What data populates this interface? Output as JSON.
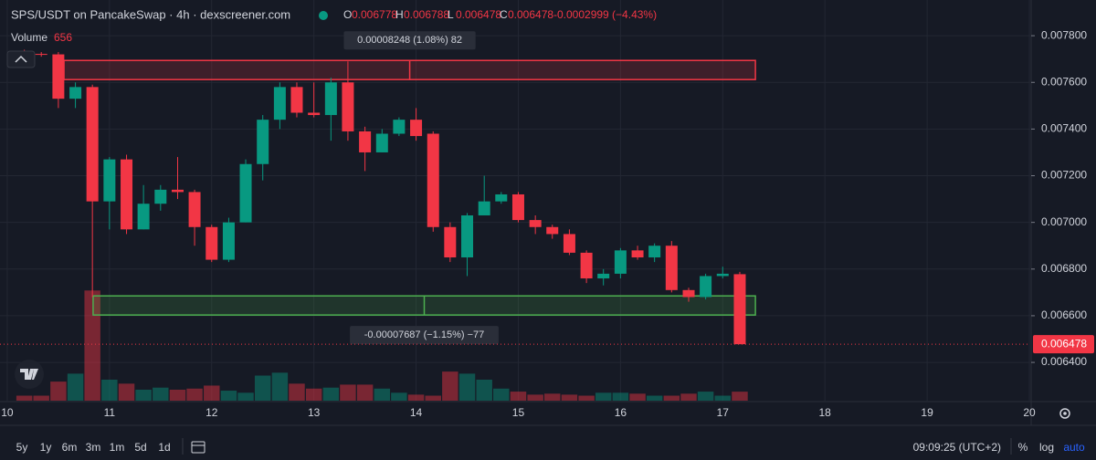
{
  "chart_data": {
    "type": "candlestick",
    "title": "SPS/USDT on PancakeSwap · 4h · dexscreener.com",
    "ohlc_header": [
      {
        "key": "O",
        "value": "0.006778"
      },
      {
        "key": "H",
        "value": "0.006788"
      },
      {
        "key": "L",
        "value": "0.006478"
      },
      {
        "key": "C",
        "value": "0.006478"
      }
    ],
    "change": "-0.0002999 (−4.43%)",
    "volume_label": "Volume",
    "volume_last": "656",
    "x": [
      10.167,
      10.333,
      10.5,
      10.667,
      10.833,
      11,
      11.167,
      11.333,
      11.5,
      11.667,
      11.833,
      12,
      12.167,
      12.333,
      12.5,
      12.667,
      12.833,
      13,
      13.167,
      13.333,
      13.5,
      13.667,
      13.833,
      14,
      14.167,
      14.333,
      14.5,
      14.667,
      14.833,
      15,
      15.167,
      15.333,
      15.5,
      15.667,
      15.833,
      16,
      16.167,
      16.333,
      16.5,
      16.667,
      16.833,
      17,
      17.167
    ],
    "open": [
      0.007725,
      0.007722,
      0.00772,
      0.00753,
      0.00758,
      0.00709,
      0.00727,
      0.00697,
      0.00708,
      0.00714,
      0.00713,
      0.00698,
      0.00684,
      0.007,
      0.00725,
      0.00744,
      0.00758,
      0.00747,
      0.00746,
      0.0076,
      0.00739,
      0.0073,
      0.00738,
      0.00744,
      0.00738,
      0.00698,
      0.00685,
      0.00703,
      0.00709,
      0.00712,
      0.00701,
      0.00698,
      0.00695,
      0.00687,
      0.00676,
      0.00678,
      0.00688,
      0.00685,
      0.0069,
      0.00671,
      0.00668,
      0.00677,
      0.006778
    ],
    "high": [
      0.00774,
      0.00773,
      0.00773,
      0.0076,
      0.00759,
      0.00728,
      0.00729,
      0.00716,
      0.00716,
      0.00728,
      0.00714,
      0.00699,
      0.00702,
      0.00727,
      0.00746,
      0.0076,
      0.0076,
      0.0076,
      0.00762,
      0.00769,
      0.00741,
      0.0074,
      0.00745,
      0.00749,
      0.00739,
      0.007,
      0.00704,
      0.0072,
      0.00713,
      0.00713,
      0.00703,
      0.00699,
      0.00697,
      0.00688,
      0.0068,
      0.00689,
      0.0069,
      0.00691,
      0.00692,
      0.00672,
      0.00678,
      0.00681,
      0.006788
    ],
    "low": [
      0.0077,
      0.00771,
      0.00749,
      0.00749,
      0.00668,
      0.00697,
      0.00695,
      0.00697,
      0.00705,
      0.0071,
      0.0069,
      0.00683,
      0.00683,
      0.007,
      0.00718,
      0.0074,
      0.00745,
      0.00745,
      0.00735,
      0.00735,
      0.00722,
      0.0073,
      0.00737,
      0.00735,
      0.00696,
      0.00683,
      0.00677,
      0.00703,
      0.00708,
      0.007,
      0.00695,
      0.00693,
      0.00686,
      0.00674,
      0.00673,
      0.00676,
      0.00684,
      0.00683,
      0.0067,
      0.00666,
      0.00667,
      0.00676,
      0.006478
    ],
    "close": [
      0.00772,
      0.007718,
      0.00753,
      0.00758,
      0.00709,
      0.00727,
      0.00697,
      0.00708,
      0.00714,
      0.00713,
      0.00698,
      0.00684,
      0.007,
      0.00725,
      0.00744,
      0.00758,
      0.00747,
      0.00746,
      0.0076,
      0.00739,
      0.0073,
      0.00738,
      0.00744,
      0.00737,
      0.00698,
      0.00685,
      0.00703,
      0.00709,
      0.00712,
      0.00701,
      0.00698,
      0.00695,
      0.00687,
      0.00676,
      0.00678,
      0.00688,
      0.00685,
      0.0069,
      0.00671,
      0.00668,
      0.00677,
      0.00678,
      0.006478
    ],
    "volume": [
      365,
      365,
      1390,
      1970,
      8030,
      1530,
      1240,
      800,
      950,
      800,
      880,
      1100,
      730,
      580,
      1830,
      2040,
      1240,
      880,
      950,
      1170,
      1170,
      880,
      580,
      440,
      365,
      2120,
      1970,
      1530,
      880,
      660,
      440,
      510,
      440,
      365,
      580,
      580,
      510,
      365,
      365,
      510,
      660,
      365,
      656
    ],
    "up_color": "#089981",
    "down_color": "#f23645",
    "xlim": [
      9.929,
      20.009
    ],
    "xticks": [
      10,
      11,
      12,
      13,
      14,
      15,
      16,
      17,
      18,
      19,
      20
    ],
    "ylim": [
      0.006236,
      0.007953
    ],
    "yticks": [
      {
        "value": 0.0064,
        "label": "0.006400"
      },
      {
        "value": 0.0066,
        "label": "0.006600"
      },
      {
        "value": 0.0068,
        "label": "0.006800"
      },
      {
        "value": 0.007,
        "label": "0.007000"
      },
      {
        "value": 0.0072,
        "label": "0.007200"
      },
      {
        "value": 0.0074,
        "label": "0.007400"
      },
      {
        "value": 0.0076,
        "label": "0.007600"
      },
      {
        "value": 0.0078,
        "label": "0.007800"
      }
    ],
    "vlim": [
      0,
      29200
    ],
    "grid": true,
    "last_price": 0.006478,
    "zones": [
      {
        "top": 0.007694,
        "bottom": 0.007612,
        "x": [
          10.555,
          17.32
        ],
        "color": "#f23645",
        "label": "0.00008248 (1.08%) 82"
      },
      {
        "top": 0.006685,
        "bottom": 0.006603,
        "x": [
          10.84,
          17.32
        ],
        "color": "#4caf50",
        "label": "-0.00007687 (−1.15%) −77"
      }
    ]
  },
  "toolbar": {
    "ranges": [
      "5y",
      "1y",
      "6m",
      "3m",
      "1m",
      "5d",
      "1d"
    ],
    "clock": "09:09:25 (UTC+2)",
    "options": [
      "%",
      "log",
      "auto"
    ]
  }
}
